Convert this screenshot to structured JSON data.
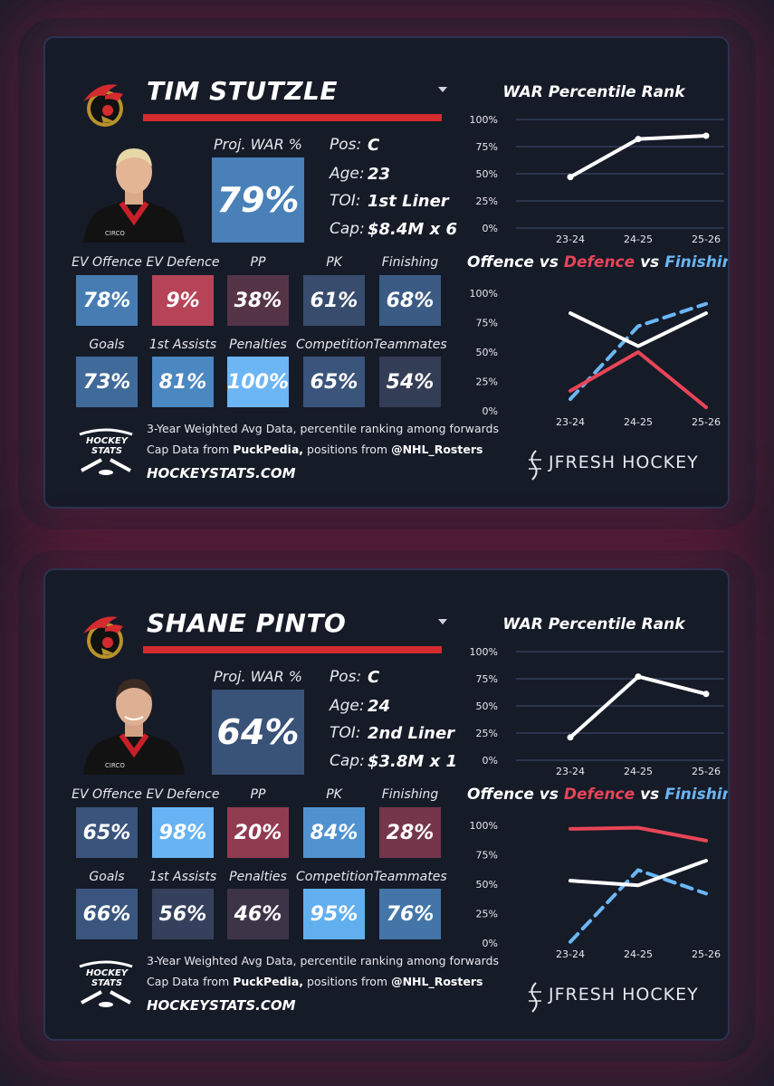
{
  "branding": {
    "footer_site": "HOCKEYSTATS.COM",
    "watermark": "JFRESH HOCKEY",
    "hs_logo_text": "HOCKEY STATS"
  },
  "colors": {
    "background": "#181d2a",
    "card": "#161b28",
    "accent_red": "#d42b2f",
    "white_line": "#ffffff",
    "defence_line": "#e74558",
    "finishing_line": "#6ab7f5"
  },
  "players": [
    {
      "name": "TIM STUTZLE",
      "war_label": "Proj. WAR %",
      "war_value": "79%",
      "war_pct": 79,
      "info_labels": [
        "Pos:",
        "Age:",
        "TOI:",
        "Cap:"
      ],
      "info_values": [
        "C",
        "23",
        "1st Liner",
        "$8.4M x 6"
      ],
      "metrics_row1": [
        {
          "label": "EV Offence",
          "value": "78%",
          "pct": 78
        },
        {
          "label": "EV Defence",
          "value": "9%",
          "pct": 9
        },
        {
          "label": "PP",
          "value": "38%",
          "pct": 38
        },
        {
          "label": "PK",
          "value": "61%",
          "pct": 61
        },
        {
          "label": "Finishing",
          "value": "68%",
          "pct": 68
        }
      ],
      "metrics_row2": [
        {
          "label": "Goals",
          "value": "73%",
          "pct": 73
        },
        {
          "label": "1st Assists",
          "value": "81%",
          "pct": 81
        },
        {
          "label": "Penalties",
          "value": "100%",
          "pct": 100
        },
        {
          "label": "Competition",
          "value": "65%",
          "pct": 65
        },
        {
          "label": "Teammates",
          "value": "54%",
          "pct": 54
        }
      ],
      "footer_line1": "3-Year Weighted Avg Data, percentile ranking among forwards",
      "footer_line2_prefix": "Cap Data from ",
      "footer_line2_puckpedia": "PuckPedia,",
      "footer_line2_mid": " positions from ",
      "footer_line2_handle": "@NHL_Rosters"
    },
    {
      "name": "SHANE PINTO",
      "war_label": "Proj. WAR %",
      "war_value": "64%",
      "war_pct": 64,
      "info_labels": [
        "Pos:",
        "Age:",
        "TOI:",
        "Cap:"
      ],
      "info_values": [
        "C",
        "24",
        "2nd Liner",
        "$3.8M x 1"
      ],
      "metrics_row1": [
        {
          "label": "EV Offence",
          "value": "65%",
          "pct": 65
        },
        {
          "label": "EV Defence",
          "value": "98%",
          "pct": 98
        },
        {
          "label": "PP",
          "value": "20%",
          "pct": 20
        },
        {
          "label": "PK",
          "value": "84%",
          "pct": 84
        },
        {
          "label": "Finishing",
          "value": "28%",
          "pct": 28
        }
      ],
      "metrics_row2": [
        {
          "label": "Goals",
          "value": "66%",
          "pct": 66
        },
        {
          "label": "1st Assists",
          "value": "56%",
          "pct": 56
        },
        {
          "label": "Penalties",
          "value": "46%",
          "pct": 46
        },
        {
          "label": "Competition",
          "value": "95%",
          "pct": 95
        },
        {
          "label": "Teammates",
          "value": "76%",
          "pct": 76
        }
      ],
      "footer_line1": "3-Year Weighted Avg Data, percentile ranking among forwards",
      "footer_line2_prefix": "Cap Data from ",
      "footer_line2_puckpedia": "PuckPedia,",
      "footer_line2_mid": " positions from ",
      "footer_line2_handle": "@NHL_Rosters"
    }
  ],
  "chart_data": [
    {
      "type": "line",
      "player": "TIM STUTZLE",
      "title": "WAR Percentile Rank",
      "categories": [
        "23-24",
        "24-25",
        "25-26"
      ],
      "yticks": [
        "0%",
        "25%",
        "50%",
        "75%",
        "100%"
      ],
      "ylim": [
        0,
        100
      ],
      "grid": true,
      "series": [
        {
          "name": "WAR",
          "values": [
            47,
            82,
            85
          ]
        }
      ]
    },
    {
      "type": "line",
      "player": "TIM STUTZLE",
      "title_parts": [
        "Offence",
        " vs ",
        "Defence",
        " vs ",
        "Finishing"
      ],
      "categories": [
        "23-24",
        "24-25",
        "25-26"
      ],
      "yticks": [
        "0%",
        "25%",
        "50%",
        "75%",
        "100%"
      ],
      "ylim": [
        0,
        100
      ],
      "grid": false,
      "series": [
        {
          "name": "Offence",
          "values": [
            83,
            55,
            83
          ]
        },
        {
          "name": "Defence",
          "values": [
            17,
            50,
            3
          ]
        },
        {
          "name": "Finishing",
          "values": [
            10,
            72,
            91
          ]
        }
      ]
    },
    {
      "type": "line",
      "player": "SHANE PINTO",
      "title": "WAR Percentile Rank",
      "categories": [
        "23-24",
        "24-25",
        "25-26"
      ],
      "yticks": [
        "0%",
        "25%",
        "50%",
        "75%",
        "100%"
      ],
      "ylim": [
        0,
        100
      ],
      "grid": true,
      "series": [
        {
          "name": "WAR",
          "values": [
            21,
            77,
            61
          ]
        }
      ]
    },
    {
      "type": "line",
      "player": "SHANE PINTO",
      "title_parts": [
        "Offence",
        " vs ",
        "Defence",
        " vs ",
        "Finishing"
      ],
      "categories": [
        "23-24",
        "24-25",
        "25-26"
      ],
      "yticks": [
        "0%",
        "25%",
        "50%",
        "75%",
        "100%"
      ],
      "ylim": [
        0,
        100
      ],
      "grid": false,
      "series": [
        {
          "name": "Offence",
          "values": [
            53,
            49,
            70
          ]
        },
        {
          "name": "Defence",
          "values": [
            97,
            98,
            87
          ]
        },
        {
          "name": "Finishing",
          "values": [
            1,
            62,
            42
          ]
        }
      ]
    }
  ]
}
